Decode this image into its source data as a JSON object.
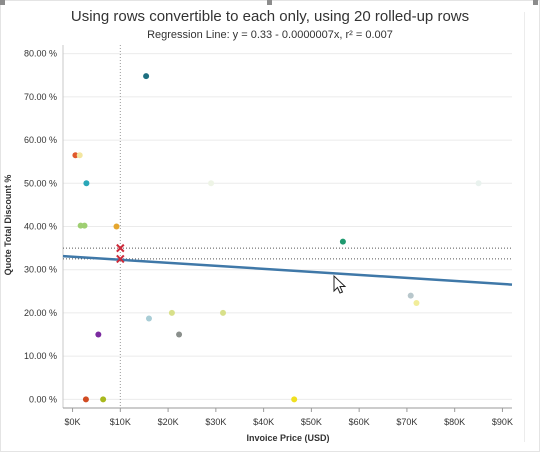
{
  "window": {
    "title": "Using rows convertible to each only, using 20 rolled-up rows",
    "subtitle": "Regression Line: y = 0.33 - 0.0000007x, r² = 0.007"
  },
  "chart_data": {
    "type": "scatter",
    "title": "Using rows convertible to each only, using 20 rolled-up rows",
    "subtitle": "Regression Line: y = 0.33 - 0.0000007x, r² = 0.007",
    "xlabel": "Invoice Price (USD)",
    "ylabel": "Quote Total Discount %",
    "xlim": [
      -2000,
      92000
    ],
    "ylim": [
      -2,
      82
    ],
    "x_ticks": [
      0,
      10000,
      20000,
      30000,
      40000,
      50000,
      60000,
      70000,
      80000,
      90000
    ],
    "x_tick_labels": [
      "$0K",
      "$10K",
      "$20K",
      "$30K",
      "$40K",
      "$50K",
      "$60K",
      "$70K",
      "$80K",
      "$90K"
    ],
    "y_ticks": [
      0,
      10,
      20,
      30,
      40,
      50,
      60,
      70,
      80
    ],
    "y_tick_labels": [
      "0.00 %",
      "10.00 %",
      "20.00 %",
      "30.00 %",
      "40.00 %",
      "50.00 %",
      "60.00 %",
      "70.00 %",
      "80.00 %"
    ],
    "grid": "horizontal",
    "points": [
      {
        "x": 600,
        "y": 56.5,
        "color": "#e0592c"
      },
      {
        "x": 1500,
        "y": 56.5,
        "color": "#f3e6a0"
      },
      {
        "x": 2900,
        "y": 50.0,
        "color": "#2aa7b8"
      },
      {
        "x": 1700,
        "y": 40.2,
        "color": "#9fcf72"
      },
      {
        "x": 2500,
        "y": 40.2,
        "color": "#9fcf72"
      },
      {
        "x": 9200,
        "y": 40.0,
        "color": "#e5a62f"
      },
      {
        "x": 15400,
        "y": 74.8,
        "color": "#1d6f80"
      },
      {
        "x": 29000,
        "y": 50.0,
        "color": "#eef4e6"
      },
      {
        "x": 85000,
        "y": 50.0,
        "color": "#e9f2ee"
      },
      {
        "x": 56600,
        "y": 36.5,
        "color": "#1f9a6f"
      },
      {
        "x": 5400,
        "y": 15.0,
        "color": "#7b2ba0"
      },
      {
        "x": 16000,
        "y": 18.7,
        "color": "#a9cdd6"
      },
      {
        "x": 20800,
        "y": 20.0,
        "color": "#d8e08a"
      },
      {
        "x": 22300,
        "y": 15.0,
        "color": "#8a8f8c"
      },
      {
        "x": 31500,
        "y": 20.0,
        "color": "#d8e08a"
      },
      {
        "x": 70800,
        "y": 24.0,
        "color": "#b8c7cc"
      },
      {
        "x": 72000,
        "y": 22.3,
        "color": "#f1ed9a"
      },
      {
        "x": 2800,
        "y": 0.0,
        "color": "#d14b22"
      },
      {
        "x": 6400,
        "y": 0.0,
        "color": "#a8b81d"
      },
      {
        "x": 46400,
        "y": 0.0,
        "color": "#f0e020"
      }
    ],
    "highlight_markers": [
      {
        "x": 10000,
        "y": 35.0,
        "color": "#cc2a3a"
      },
      {
        "x": 10000,
        "y": 32.5,
        "color": "#cc2a3a"
      }
    ],
    "regression_line": {
      "intercept": 33.0,
      "slope_pct_per_usd": -7e-05,
      "color": "#3f78a8"
    },
    "reference_lines": {
      "x": 10000,
      "y": [
        35.0,
        32.5
      ]
    }
  }
}
